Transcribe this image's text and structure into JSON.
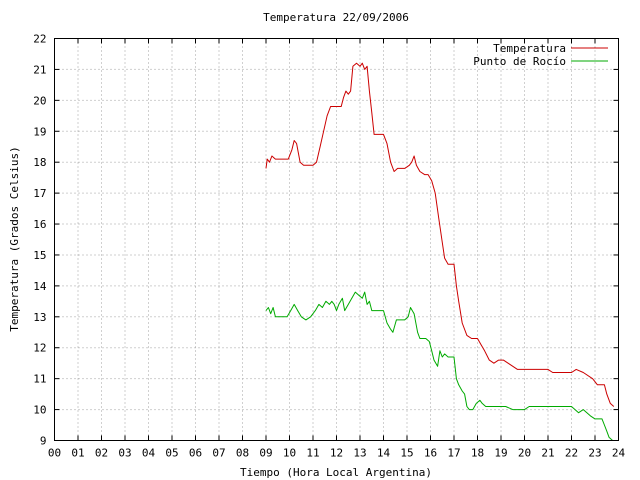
{
  "chart_data": {
    "type": "line",
    "title": "Temperatura 22/09/2006",
    "xlabel": "Tiempo (Hora Local Argentina)",
    "ylabel": "Temperatura (Grados Celsius)",
    "xlim": [
      0,
      24
    ],
    "ylim": [
      9,
      22
    ],
    "xticks": [
      "00",
      "01",
      "02",
      "03",
      "04",
      "05",
      "06",
      "07",
      "08",
      "09",
      "10",
      "11",
      "12",
      "13",
      "14",
      "15",
      "16",
      "17",
      "18",
      "19",
      "20",
      "21",
      "22",
      "23",
      "24"
    ],
    "yticks": [
      "9",
      "10",
      "11",
      "12",
      "13",
      "14",
      "15",
      "16",
      "17",
      "18",
      "19",
      "20",
      "21",
      "22"
    ],
    "grid": true,
    "legend_position": "top-right",
    "series": [
      {
        "name": "Temperatura",
        "color": "#cc0000",
        "points": [
          [
            9.0,
            17.8
          ],
          [
            9.05,
            18.1
          ],
          [
            9.15,
            18.0
          ],
          [
            9.25,
            18.2
          ],
          [
            9.4,
            18.1
          ],
          [
            9.8,
            18.1
          ],
          [
            9.95,
            18.1
          ],
          [
            10.1,
            18.4
          ],
          [
            10.2,
            18.7
          ],
          [
            10.3,
            18.6
          ],
          [
            10.45,
            18.0
          ],
          [
            10.6,
            17.9
          ],
          [
            10.8,
            17.9
          ],
          [
            11.0,
            17.9
          ],
          [
            11.15,
            18.0
          ],
          [
            11.3,
            18.5
          ],
          [
            11.45,
            19.0
          ],
          [
            11.6,
            19.5
          ],
          [
            11.75,
            19.8
          ],
          [
            12.0,
            19.8
          ],
          [
            12.2,
            19.8
          ],
          [
            12.3,
            20.1
          ],
          [
            12.4,
            20.3
          ],
          [
            12.5,
            20.2
          ],
          [
            12.6,
            20.3
          ],
          [
            12.7,
            21.1
          ],
          [
            12.85,
            21.2
          ],
          [
            13.0,
            21.1
          ],
          [
            13.1,
            21.2
          ],
          [
            13.2,
            21.0
          ],
          [
            13.3,
            21.1
          ],
          [
            13.4,
            20.3
          ],
          [
            13.5,
            19.6
          ],
          [
            13.6,
            18.9
          ],
          [
            13.8,
            18.9
          ],
          [
            14.0,
            18.9
          ],
          [
            14.15,
            18.6
          ],
          [
            14.3,
            18.0
          ],
          [
            14.45,
            17.7
          ],
          [
            14.6,
            17.8
          ],
          [
            14.75,
            17.8
          ],
          [
            14.9,
            17.8
          ],
          [
            15.1,
            17.9
          ],
          [
            15.2,
            18.0
          ],
          [
            15.3,
            18.2
          ],
          [
            15.4,
            17.9
          ],
          [
            15.55,
            17.7
          ],
          [
            15.75,
            17.6
          ],
          [
            15.9,
            17.6
          ],
          [
            16.05,
            17.4
          ],
          [
            16.2,
            17.0
          ],
          [
            16.35,
            16.2
          ],
          [
            16.5,
            15.4
          ],
          [
            16.6,
            14.9
          ],
          [
            16.75,
            14.7
          ],
          [
            17.0,
            14.7
          ],
          [
            17.1,
            14.0
          ],
          [
            17.2,
            13.5
          ],
          [
            17.35,
            12.8
          ],
          [
            17.55,
            12.4
          ],
          [
            17.75,
            12.3
          ],
          [
            18.0,
            12.3
          ],
          [
            18.15,
            12.1
          ],
          [
            18.3,
            11.9
          ],
          [
            18.5,
            11.6
          ],
          [
            18.7,
            11.5
          ],
          [
            18.9,
            11.6
          ],
          [
            19.1,
            11.6
          ],
          [
            19.3,
            11.5
          ],
          [
            19.5,
            11.4
          ],
          [
            19.7,
            11.3
          ],
          [
            20.0,
            11.3
          ],
          [
            20.5,
            11.3
          ],
          [
            21.0,
            11.3
          ],
          [
            21.2,
            11.2
          ],
          [
            21.5,
            11.2
          ],
          [
            22.0,
            11.2
          ],
          [
            22.2,
            11.3
          ],
          [
            22.5,
            11.2
          ],
          [
            22.9,
            11.0
          ],
          [
            23.0,
            10.9
          ],
          [
            23.1,
            10.8
          ],
          [
            23.4,
            10.8
          ],
          [
            23.5,
            10.5
          ],
          [
            23.65,
            10.2
          ],
          [
            23.8,
            10.1
          ]
        ]
      },
      {
        "name": "Punto de Rocío",
        "color": "#00aa00",
        "points": [
          [
            9.0,
            13.2
          ],
          [
            9.1,
            13.3
          ],
          [
            9.2,
            13.1
          ],
          [
            9.3,
            13.3
          ],
          [
            9.4,
            13.0
          ],
          [
            9.6,
            13.0
          ],
          [
            9.9,
            13.0
          ],
          [
            10.05,
            13.2
          ],
          [
            10.2,
            13.4
          ],
          [
            10.35,
            13.2
          ],
          [
            10.5,
            13.0
          ],
          [
            10.7,
            12.9
          ],
          [
            10.9,
            13.0
          ],
          [
            11.1,
            13.2
          ],
          [
            11.25,
            13.4
          ],
          [
            11.4,
            13.3
          ],
          [
            11.55,
            13.5
          ],
          [
            11.7,
            13.4
          ],
          [
            11.8,
            13.5
          ],
          [
            11.9,
            13.4
          ],
          [
            12.0,
            13.2
          ],
          [
            12.1,
            13.4
          ],
          [
            12.25,
            13.6
          ],
          [
            12.35,
            13.2
          ],
          [
            12.5,
            13.4
          ],
          [
            12.65,
            13.6
          ],
          [
            12.8,
            13.8
          ],
          [
            12.95,
            13.7
          ],
          [
            13.1,
            13.6
          ],
          [
            13.2,
            13.8
          ],
          [
            13.3,
            13.4
          ],
          [
            13.4,
            13.5
          ],
          [
            13.5,
            13.2
          ],
          [
            13.8,
            13.2
          ],
          [
            14.0,
            13.2
          ],
          [
            14.15,
            12.8
          ],
          [
            14.3,
            12.6
          ],
          [
            14.4,
            12.5
          ],
          [
            14.55,
            12.9
          ],
          [
            14.7,
            12.9
          ],
          [
            14.9,
            12.9
          ],
          [
            15.05,
            13.0
          ],
          [
            15.15,
            13.3
          ],
          [
            15.3,
            13.1
          ],
          [
            15.45,
            12.5
          ],
          [
            15.55,
            12.3
          ],
          [
            15.8,
            12.3
          ],
          [
            15.95,
            12.2
          ],
          [
            16.05,
            11.9
          ],
          [
            16.15,
            11.6
          ],
          [
            16.3,
            11.4
          ],
          [
            16.4,
            11.9
          ],
          [
            16.5,
            11.7
          ],
          [
            16.6,
            11.8
          ],
          [
            16.75,
            11.7
          ],
          [
            17.0,
            11.7
          ],
          [
            17.1,
            11.0
          ],
          [
            17.2,
            10.8
          ],
          [
            17.35,
            10.6
          ],
          [
            17.45,
            10.5
          ],
          [
            17.55,
            10.1
          ],
          [
            17.65,
            10.0
          ],
          [
            17.8,
            10.0
          ],
          [
            17.95,
            10.2
          ],
          [
            18.1,
            10.3
          ],
          [
            18.2,
            10.2
          ],
          [
            18.35,
            10.1
          ],
          [
            18.5,
            10.1
          ],
          [
            18.8,
            10.1
          ],
          [
            19.0,
            10.1
          ],
          [
            19.2,
            10.1
          ],
          [
            19.5,
            10.0
          ],
          [
            20.0,
            10.0
          ],
          [
            20.2,
            10.1
          ],
          [
            20.5,
            10.1
          ],
          [
            21.0,
            10.1
          ],
          [
            21.3,
            10.1
          ],
          [
            21.5,
            10.1
          ],
          [
            22.0,
            10.1
          ],
          [
            22.3,
            9.9
          ],
          [
            22.5,
            10.0
          ],
          [
            22.8,
            9.8
          ],
          [
            23.0,
            9.7
          ],
          [
            23.3,
            9.7
          ],
          [
            23.4,
            9.5
          ],
          [
            23.5,
            9.3
          ],
          [
            23.6,
            9.1
          ],
          [
            23.75,
            9.0
          ]
        ]
      }
    ]
  }
}
